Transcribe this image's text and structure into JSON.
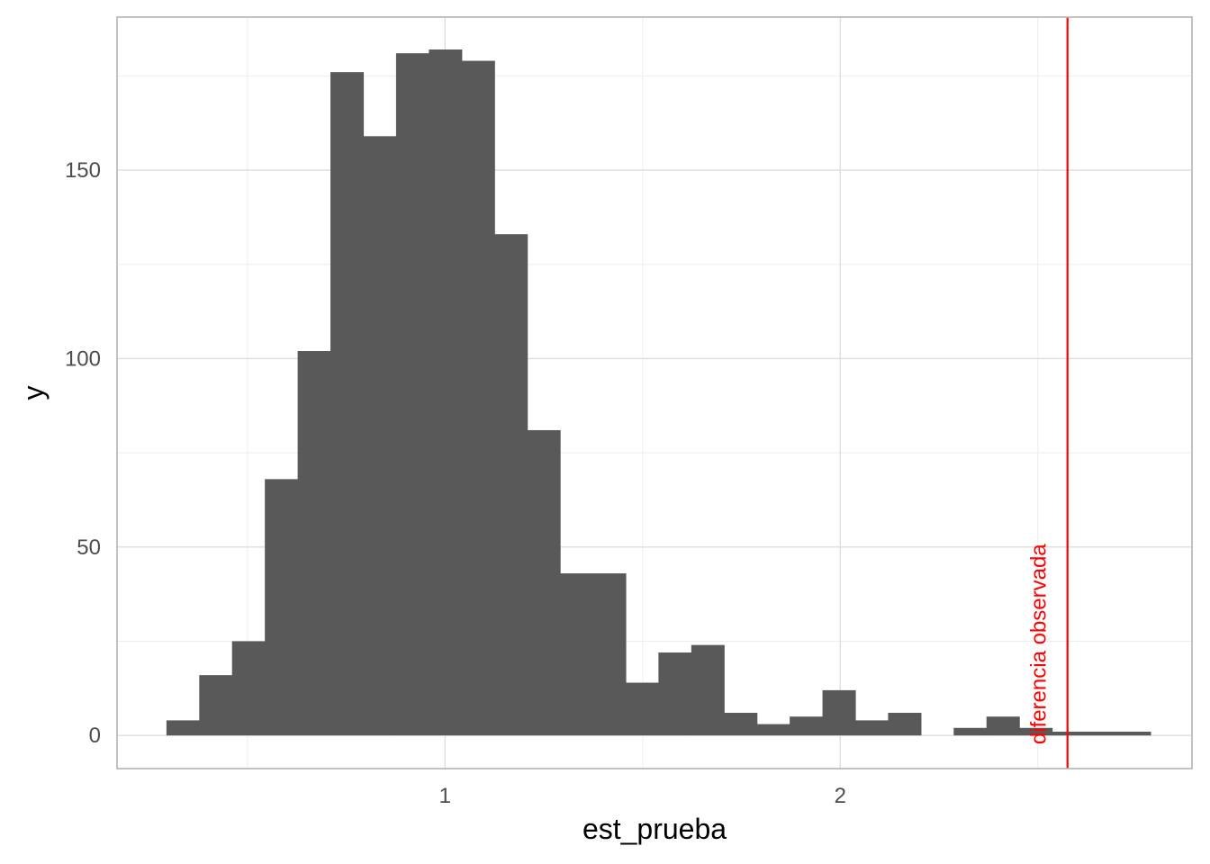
{
  "chart_data": {
    "type": "bar",
    "subtype": "histogram",
    "xlabel": "est_prueba",
    "ylabel": "y",
    "xlim": [
      0.17,
      2.89
    ],
    "ylim": [
      -8.8,
      190.6
    ],
    "x_ticks": [
      {
        "value": 1,
        "label": "1"
      },
      {
        "value": 2,
        "label": "2"
      }
    ],
    "y_ticks": [
      {
        "value": 0,
        "label": "0"
      },
      {
        "value": 50,
        "label": "50"
      },
      {
        "value": 100,
        "label": "100"
      },
      {
        "value": 150,
        "label": "150"
      }
    ],
    "x_minor_ticks": [
      0.5,
      1.5,
      2.5
    ],
    "y_minor_ticks": [
      25,
      75,
      125,
      175
    ],
    "grid": true,
    "bins": [
      {
        "x0": 0.295,
        "x1": 0.378,
        "count": 4
      },
      {
        "x0": 0.378,
        "x1": 0.461,
        "count": 16
      },
      {
        "x0": 0.461,
        "x1": 0.544,
        "count": 25
      },
      {
        "x0": 0.544,
        "x1": 0.627,
        "count": 68
      },
      {
        "x0": 0.627,
        "x1": 0.71,
        "count": 102
      },
      {
        "x0": 0.71,
        "x1": 0.793,
        "count": 176
      },
      {
        "x0": 0.793,
        "x1": 0.876,
        "count": 159
      },
      {
        "x0": 0.876,
        "x1": 0.959,
        "count": 181
      },
      {
        "x0": 0.959,
        "x1": 1.042,
        "count": 182
      },
      {
        "x0": 1.042,
        "x1": 1.125,
        "count": 179
      },
      {
        "x0": 1.125,
        "x1": 1.208,
        "count": 133
      },
      {
        "x0": 1.208,
        "x1": 1.291,
        "count": 81
      },
      {
        "x0": 1.291,
        "x1": 1.374,
        "count": 43
      },
      {
        "x0": 1.374,
        "x1": 1.457,
        "count": 43
      },
      {
        "x0": 1.457,
        "x1": 1.54,
        "count": 14
      },
      {
        "x0": 1.54,
        "x1": 1.623,
        "count": 22
      },
      {
        "x0": 1.623,
        "x1": 1.706,
        "count": 24
      },
      {
        "x0": 1.706,
        "x1": 1.789,
        "count": 6
      },
      {
        "x0": 1.789,
        "x1": 1.872,
        "count": 3
      },
      {
        "x0": 1.872,
        "x1": 1.955,
        "count": 5
      },
      {
        "x0": 1.955,
        "x1": 2.038,
        "count": 12
      },
      {
        "x0": 2.038,
        "x1": 2.121,
        "count": 4
      },
      {
        "x0": 2.121,
        "x1": 2.204,
        "count": 6
      },
      {
        "x0": 2.204,
        "x1": 2.287,
        "count": 0
      },
      {
        "x0": 2.287,
        "x1": 2.37,
        "count": 2
      },
      {
        "x0": 2.37,
        "x1": 2.453,
        "count": 5
      },
      {
        "x0": 2.453,
        "x1": 2.536,
        "count": 2
      },
      {
        "x0": 2.536,
        "x1": 2.619,
        "count": 1
      },
      {
        "x0": 2.619,
        "x1": 2.702,
        "count": 1
      },
      {
        "x0": 2.702,
        "x1": 2.785,
        "count": 1
      }
    ],
    "vline": {
      "x": 2.575,
      "label": "diferencia observada",
      "color": "#ff0000"
    },
    "colors": {
      "bar": "#595959",
      "grid_major": "#dedede",
      "grid_minor": "#ededed",
      "panel_border": "#b3b3b3"
    }
  }
}
